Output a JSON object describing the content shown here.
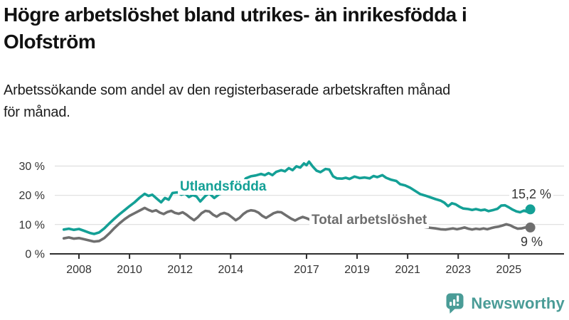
{
  "header": {
    "title": "Högre arbetslöshet bland utrikes- än inrikesfödda i\nOlofström",
    "subtitle": "Arbetssökande som andel av den registerbaserade arbetskraften månad\nför månad."
  },
  "chart_data": {
    "type": "line",
    "unit": "%",
    "grid": true,
    "x_axis": {
      "ticks": [
        2008,
        2010,
        2012,
        2014,
        2017,
        2019,
        2021,
        2023,
        2025
      ]
    },
    "y_axis": {
      "ticks": [
        0,
        10,
        20,
        30
      ],
      "suffix": " %",
      "range": [
        0,
        33
      ]
    },
    "colors": {
      "axis": "#2e2e2e",
      "gridline": "#d9d9d9",
      "tick_text": "#333333"
    },
    "series": [
      {
        "id": "utlandsfodda",
        "label": "Utlandsfödda",
        "color": "#14a096",
        "end_label": "15,2 %",
        "end_value": 15.2,
        "points": [
          [
            2007.4,
            8.3
          ],
          [
            2007.6,
            8.6
          ],
          [
            2007.8,
            8.2
          ],
          [
            2008.0,
            8.5
          ],
          [
            2008.2,
            7.9
          ],
          [
            2008.45,
            7.1
          ],
          [
            2008.6,
            6.8
          ],
          [
            2008.8,
            7.3
          ],
          [
            2009.0,
            8.7
          ],
          [
            2009.2,
            10.4
          ],
          [
            2009.4,
            12.0
          ],
          [
            2009.6,
            13.5
          ],
          [
            2009.8,
            14.9
          ],
          [
            2010.0,
            16.3
          ],
          [
            2010.2,
            17.6
          ],
          [
            2010.4,
            19.2
          ],
          [
            2010.6,
            20.5
          ],
          [
            2010.75,
            19.8
          ],
          [
            2010.9,
            20.2
          ],
          [
            2011.1,
            18.7
          ],
          [
            2011.25,
            17.6
          ],
          [
            2011.4,
            19.1
          ],
          [
            2011.55,
            18.5
          ],
          [
            2011.7,
            20.8
          ],
          [
            2011.9,
            21.0
          ],
          [
            2012.05,
            20.2
          ],
          [
            2012.2,
            20.6
          ],
          [
            2012.35,
            19.4
          ],
          [
            2012.5,
            20.1
          ],
          [
            2012.65,
            19.6
          ],
          [
            2012.8,
            17.9
          ],
          [
            2013.0,
            19.8
          ],
          [
            2013.15,
            20.7
          ],
          [
            2013.35,
            19.1
          ],
          [
            2013.55,
            20.4
          ],
          [
            2013.75,
            20.9
          ],
          [
            2013.95,
            21.3
          ],
          [
            2014.1,
            20.8
          ],
          [
            2014.3,
            21.5
          ],
          [
            2014.45,
            23.5
          ],
          [
            2014.6,
            25.8
          ],
          [
            2014.8,
            26.5
          ],
          [
            2015.0,
            26.8
          ],
          [
            2015.2,
            27.3
          ],
          [
            2015.35,
            26.9
          ],
          [
            2015.5,
            27.6
          ],
          [
            2015.65,
            26.9
          ],
          [
            2015.8,
            28.0
          ],
          [
            2016.0,
            28.6
          ],
          [
            2016.15,
            28.2
          ],
          [
            2016.3,
            29.3
          ],
          [
            2016.45,
            28.6
          ],
          [
            2016.6,
            29.9
          ],
          [
            2016.75,
            29.5
          ],
          [
            2016.9,
            30.9
          ],
          [
            2017.0,
            30.3
          ],
          [
            2017.1,
            31.5
          ],
          [
            2017.25,
            29.8
          ],
          [
            2017.4,
            28.4
          ],
          [
            2017.55,
            27.9
          ],
          [
            2017.75,
            29.0
          ],
          [
            2017.9,
            28.8
          ],
          [
            2018.05,
            26.5
          ],
          [
            2018.2,
            25.8
          ],
          [
            2018.4,
            25.7
          ],
          [
            2018.55,
            26.0
          ],
          [
            2018.7,
            25.6
          ],
          [
            2018.9,
            26.4
          ],
          [
            2019.1,
            25.9
          ],
          [
            2019.3,
            26.1
          ],
          [
            2019.5,
            25.8
          ],
          [
            2019.65,
            26.6
          ],
          [
            2019.8,
            26.2
          ],
          [
            2020.0,
            26.9
          ],
          [
            2020.15,
            26.0
          ],
          [
            2020.35,
            25.3
          ],
          [
            2020.55,
            24.9
          ],
          [
            2020.7,
            23.8
          ],
          [
            2020.9,
            23.4
          ],
          [
            2021.1,
            22.6
          ],
          [
            2021.3,
            21.5
          ],
          [
            2021.5,
            20.4
          ],
          [
            2021.7,
            19.9
          ],
          [
            2021.9,
            19.3
          ],
          [
            2022.1,
            18.7
          ],
          [
            2022.3,
            18.2
          ],
          [
            2022.45,
            17.5
          ],
          [
            2022.6,
            16.3
          ],
          [
            2022.75,
            17.3
          ],
          [
            2022.9,
            16.9
          ],
          [
            2023.05,
            16.1
          ],
          [
            2023.2,
            15.5
          ],
          [
            2023.4,
            15.3
          ],
          [
            2023.55,
            15.0
          ],
          [
            2023.7,
            15.3
          ],
          [
            2023.9,
            14.9
          ],
          [
            2024.05,
            15.1
          ],
          [
            2024.2,
            14.6
          ],
          [
            2024.4,
            15.0
          ],
          [
            2024.55,
            15.4
          ],
          [
            2024.7,
            16.5
          ],
          [
            2024.85,
            16.6
          ],
          [
            2025.0,
            15.9
          ],
          [
            2025.15,
            15.1
          ],
          [
            2025.3,
            14.5
          ],
          [
            2025.45,
            14.2
          ],
          [
            2025.6,
            14.8
          ],
          [
            2025.72,
            14.4
          ],
          [
            2025.85,
            15.2
          ]
        ]
      },
      {
        "id": "total-arbetsloshet",
        "label": "Total arbetslöshet",
        "color": "#6f6f6f",
        "end_label": "9 %",
        "end_value": 9,
        "points": [
          [
            2007.4,
            5.3
          ],
          [
            2007.6,
            5.6
          ],
          [
            2007.8,
            5.2
          ],
          [
            2008.0,
            5.4
          ],
          [
            2008.2,
            5.0
          ],
          [
            2008.45,
            4.5
          ],
          [
            2008.6,
            4.2
          ],
          [
            2008.8,
            4.4
          ],
          [
            2009.0,
            5.4
          ],
          [
            2009.2,
            7.0
          ],
          [
            2009.4,
            8.8
          ],
          [
            2009.6,
            10.4
          ],
          [
            2009.8,
            11.8
          ],
          [
            2010.0,
            13.0
          ],
          [
            2010.2,
            13.9
          ],
          [
            2010.4,
            14.8
          ],
          [
            2010.6,
            15.7
          ],
          [
            2010.75,
            15.0
          ],
          [
            2010.9,
            14.5
          ],
          [
            2011.05,
            14.9
          ],
          [
            2011.2,
            14.1
          ],
          [
            2011.35,
            13.6
          ],
          [
            2011.5,
            14.3
          ],
          [
            2011.65,
            14.7
          ],
          [
            2011.8,
            14.0
          ],
          [
            2011.95,
            13.7
          ],
          [
            2012.1,
            14.2
          ],
          [
            2012.25,
            13.4
          ],
          [
            2012.4,
            12.4
          ],
          [
            2012.55,
            11.5
          ],
          [
            2012.7,
            12.5
          ],
          [
            2012.85,
            13.9
          ],
          [
            2013.0,
            14.7
          ],
          [
            2013.15,
            14.5
          ],
          [
            2013.3,
            13.4
          ],
          [
            2013.45,
            12.7
          ],
          [
            2013.6,
            13.6
          ],
          [
            2013.75,
            14.0
          ],
          [
            2013.9,
            13.5
          ],
          [
            2014.05,
            12.5
          ],
          [
            2014.2,
            11.5
          ],
          [
            2014.35,
            12.3
          ],
          [
            2014.5,
            13.6
          ],
          [
            2014.65,
            14.5
          ],
          [
            2014.8,
            14.9
          ],
          [
            2014.95,
            14.7
          ],
          [
            2015.1,
            14.1
          ],
          [
            2015.25,
            13.0
          ],
          [
            2015.4,
            12.3
          ],
          [
            2015.55,
            13.1
          ],
          [
            2015.7,
            13.9
          ],
          [
            2015.85,
            14.3
          ],
          [
            2016.0,
            14.2
          ],
          [
            2016.2,
            13.1
          ],
          [
            2016.4,
            12.0
          ],
          [
            2016.55,
            11.4
          ],
          [
            2016.7,
            12.1
          ],
          [
            2016.85,
            12.6
          ],
          [
            2017.0,
            12.2
          ],
          [
            2017.15,
            11.6
          ],
          [
            2017.3,
            10.9
          ],
          [
            2017.5,
            11.4
          ],
          [
            2017.7,
            11.8
          ],
          [
            2017.9,
            11.4
          ],
          [
            2018.1,
            10.9
          ],
          [
            2018.3,
            10.5
          ],
          [
            2018.5,
            10.9
          ],
          [
            2018.7,
            11.1
          ],
          [
            2018.9,
            10.7
          ],
          [
            2019.1,
            10.4
          ],
          [
            2019.3,
            10.1
          ],
          [
            2019.5,
            10.5
          ],
          [
            2019.7,
            10.8
          ],
          [
            2019.9,
            10.5
          ],
          [
            2020.1,
            10.6
          ],
          [
            2020.3,
            11.5
          ],
          [
            2020.5,
            11.8
          ],
          [
            2020.7,
            11.2
          ],
          [
            2020.9,
            10.7
          ],
          [
            2021.1,
            10.3
          ],
          [
            2021.3,
            9.8
          ],
          [
            2021.5,
            9.4
          ],
          [
            2021.7,
            9.1
          ],
          [
            2021.9,
            8.9
          ],
          [
            2022.1,
            8.7
          ],
          [
            2022.3,
            8.4
          ],
          [
            2022.5,
            8.3
          ],
          [
            2022.65,
            8.5
          ],
          [
            2022.8,
            8.7
          ],
          [
            2022.95,
            8.4
          ],
          [
            2023.1,
            8.7
          ],
          [
            2023.25,
            9.0
          ],
          [
            2023.4,
            8.6
          ],
          [
            2023.55,
            8.3
          ],
          [
            2023.7,
            8.6
          ],
          [
            2023.85,
            8.4
          ],
          [
            2024.0,
            8.7
          ],
          [
            2024.15,
            8.4
          ],
          [
            2024.3,
            8.8
          ],
          [
            2024.45,
            9.1
          ],
          [
            2024.6,
            9.3
          ],
          [
            2024.75,
            9.7
          ],
          [
            2024.9,
            10.1
          ],
          [
            2025.05,
            9.8
          ],
          [
            2025.2,
            9.1
          ],
          [
            2025.35,
            8.6
          ],
          [
            2025.5,
            8.7
          ],
          [
            2025.65,
            9.0
          ],
          [
            2025.85,
            9.0
          ]
        ]
      }
    ]
  },
  "branding": {
    "name": "Newsworthy",
    "color": "#4a9c97",
    "icon": "bar-chart-speech-bubble"
  }
}
